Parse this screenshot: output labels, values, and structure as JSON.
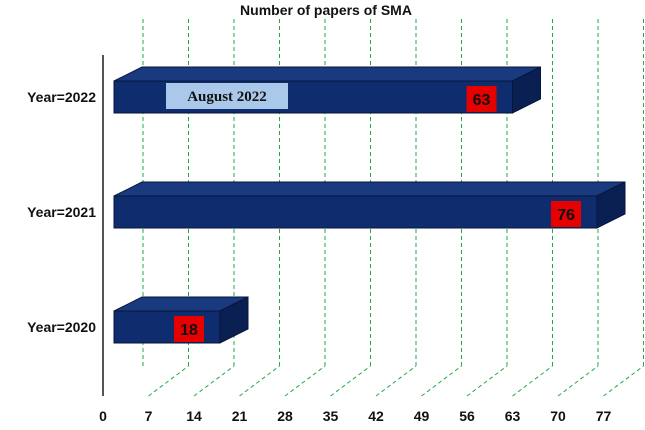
{
  "chart_data": {
    "type": "bar",
    "orientation": "horizontal",
    "title": "Number of papers of SMA",
    "categories": [
      "Year=2022",
      "Year=2021",
      "Year=2020"
    ],
    "values": [
      63,
      76,
      18
    ],
    "xticks": [
      "0",
      "7",
      "14",
      "21",
      "28",
      "35",
      "42",
      "49",
      "56",
      "63",
      "70",
      "77"
    ],
    "xlim": [
      0,
      77
    ],
    "gridlines": "vertical dashed",
    "annotation": {
      "text": "August 2022",
      "category": "Year=2022"
    },
    "colors": {
      "bar_front": "#0f2d6e",
      "bar_top": "#1a3a7f",
      "bar_side": "#0a1f52",
      "value_box": "#e60000",
      "annotation_box": "#a9c8ea",
      "grid": "#22a84a"
    }
  }
}
